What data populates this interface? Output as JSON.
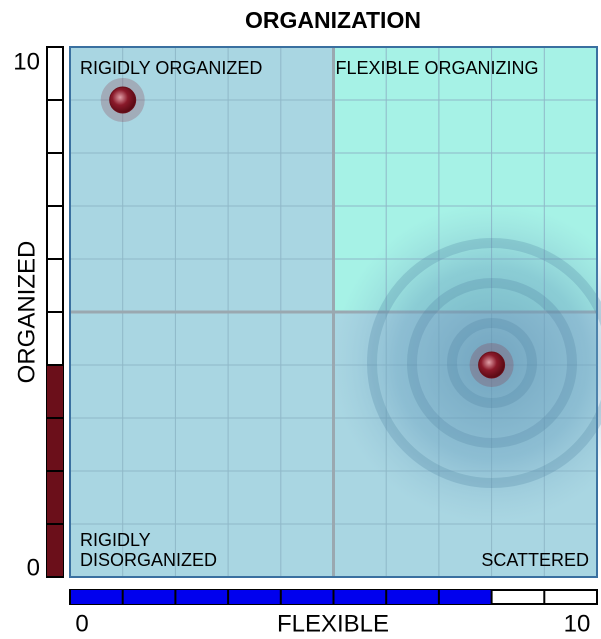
{
  "chart_data": {
    "type": "scatter",
    "title": "ORGANIZATION",
    "xlabel": "FLEXIBLE",
    "ylabel": "ORGANIZED",
    "xlim": [
      0,
      10
    ],
    "ylim": [
      0,
      10
    ],
    "xticks": [
      0,
      10
    ],
    "yticks": [
      0,
      10
    ],
    "xgrid": [
      0,
      1,
      2,
      3,
      4,
      5,
      6,
      7,
      8,
      9,
      10
    ],
    "ygrid": [
      0,
      1,
      2,
      3,
      4,
      5,
      6,
      7,
      8,
      9,
      10
    ],
    "divider": {
      "x": 5,
      "y": 5
    },
    "quadrant_labels": [
      [
        "RIGIDLY ORGANIZED"
      ],
      [
        "FLEXIBLE ORGANIZING"
      ],
      [
        "RIGIDLY",
        "DISORGANIZED"
      ],
      [
        "SCATTERED"
      ]
    ],
    "x": [
      1,
      8
    ],
    "values": [
      9,
      4
    ],
    "color": "#6b0f1a",
    "x_gauge": 8,
    "y_gauge": 4,
    "x_gauge_color": "#0000ee",
    "y_gauge_color": "#6b0f1a",
    "grid": true
  }
}
